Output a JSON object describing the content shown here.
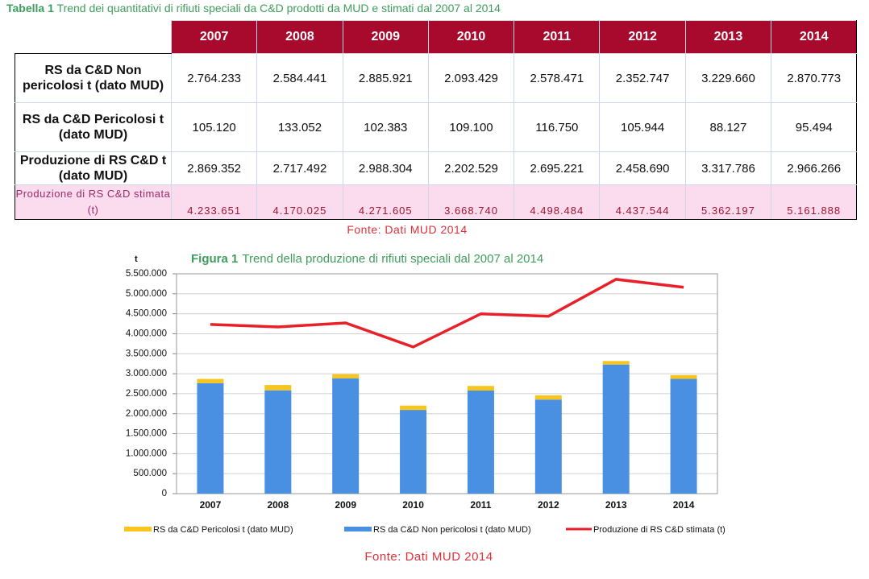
{
  "table": {
    "caption_label": "Tabella 1",
    "caption": "Trend dei quantitativi di rifiuti speciali da C&D prodotti da MUD e stimati dal 2007 al 2014",
    "columns": [
      "2007",
      "2008",
      "2009",
      "2010",
      "2011",
      "2012",
      "2013",
      "2014"
    ],
    "rows": [
      {
        "label": "RS da C&D Non pericolosi t (dato MUD)",
        "cells": [
          "2.764.233",
          "2.584.441",
          "2.885.921",
          "2.093.429",
          "2.578.471",
          "2.352.747",
          "3.229.660",
          "2.870.773"
        ]
      },
      {
        "label": "RS da C&D Pericolosi t (dato MUD)",
        "cells": [
          "105.120",
          "133.052",
          "102.383",
          "109.100",
          "116.750",
          "105.944",
          "88.127",
          "95.494"
        ]
      },
      {
        "label": "Produzione di RS C&D t (dato MUD)",
        "cells": [
          "2.869.352",
          "2.717.492",
          "2.988.304",
          "2.202.529",
          "2.695.221",
          "2.458.690",
          "3.317.786",
          "2.966.266"
        ]
      },
      {
        "label": "Produzione di RS C&D stimata (t)",
        "cells": [
          "4.233.651",
          "4.170.025",
          "4.271.605",
          "3.668.740",
          "4.498.484",
          "4.437.544",
          "5.362.197",
          "5.161.888"
        ]
      }
    ],
    "source": "Fonte: Dati MUD 2014"
  },
  "chart_data": {
    "type": "bar",
    "title_label": "Figura 1",
    "title": "Trend della produzione di rifiuti speciali dal 2007 al 2014",
    "y_label": "t",
    "categories": [
      "2007",
      "2008",
      "2009",
      "2010",
      "2011",
      "2012",
      "2013",
      "2014"
    ],
    "series": [
      {
        "name": "RS da C&D Non pericolosi t (dato MUD)",
        "type": "bar",
        "color": "#4a90e2",
        "values": [
          2764233,
          2584441,
          2885921,
          2093429,
          2578471,
          2352747,
          3229660,
          2870773
        ]
      },
      {
        "name": "RS da C&D Pericolosi t (dato MUD)",
        "type": "bar",
        "color": "#f7c51e",
        "values": [
          105120,
          133052,
          102383,
          109100,
          116750,
          105944,
          88127,
          95494
        ]
      },
      {
        "name": "Produzione di RS C&D stimata (t)",
        "type": "line",
        "color": "#e8202a",
        "values": [
          4233651,
          4170025,
          4271605,
          3668740,
          4498484,
          4437544,
          5362197,
          5161888
        ]
      }
    ],
    "stacked": true,
    "ylim": [
      0,
      5500000
    ],
    "yticks": [
      0,
      {
        "value": 500000,
        "label": "500.000"
      },
      {
        "value": 1000000,
        "label": "1.000.000"
      },
      {
        "value": 1500000,
        "label": "1.500.000"
      },
      {
        "value": 2000000,
        "label": "2.000.000"
      },
      {
        "value": 2500000,
        "label": "2.500.000"
      },
      {
        "value": 3000000,
        "label": "3.000.000"
      },
      {
        "value": 3500000,
        "label": "3.500.000"
      },
      {
        "value": 4000000,
        "label": "4.000.000"
      },
      {
        "value": 4500000,
        "label": "4.500.000"
      },
      {
        "value": 5000000,
        "label": "5.000.000"
      },
      {
        "value": 5500000,
        "label": "5.500.000"
      }
    ],
    "grid": true,
    "legend": "bottom",
    "source": "Fonte: Dati MUD 2014"
  }
}
